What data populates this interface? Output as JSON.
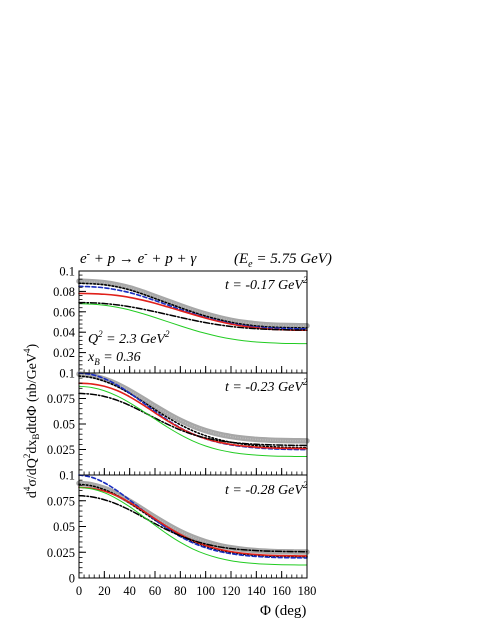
{
  "figure": {
    "reaction_parts": [
      "e",
      "-",
      " + p → e",
      "-",
      " + p + γ"
    ],
    "energy_parts": [
      "(E",
      "e",
      " = 5.75 GeV)"
    ],
    "ylabel_parts": [
      "d",
      "4",
      "σ/dQ",
      "2",
      "dx",
      "B",
      "dtdΦ (nb/GeV",
      "4",
      ")"
    ],
    "xlabel": "Φ (deg)",
    "kinematics": {
      "q2_parts": [
        "Q",
        "2",
        " = 2.3 GeV",
        "2"
      ],
      "xb_parts": [
        "x",
        "B",
        " = 0.36"
      ]
    }
  },
  "chart_data": [
    {
      "type": "line",
      "panel_label_parts": [
        "t = -0.17 GeV",
        "2"
      ],
      "xlim": [
        0,
        180
      ],
      "ylim": [
        0,
        0.1
      ],
      "xticks": [
        0,
        20,
        40,
        60,
        80,
        100,
        120,
        140,
        160,
        180
      ],
      "yticks": [
        0.02,
        0.04,
        0.06,
        0.08,
        0.1
      ],
      "ytick_labels": [
        "0.02",
        "0.04",
        "0.06",
        "0.08",
        "0.1"
      ],
      "x": [
        0,
        10,
        20,
        30,
        40,
        50,
        60,
        70,
        80,
        90,
        100,
        110,
        120,
        130,
        140,
        150,
        160,
        170,
        180
      ],
      "series": [
        {
          "style": "grey-band",
          "color": "#8a8a8a",
          "values": [
            0.09,
            0.0895,
            0.0885,
            0.0865,
            0.0835,
            0.0795,
            0.075,
            0.0705,
            0.066,
            0.0617,
            0.0578,
            0.0545,
            0.0517,
            0.0496,
            0.0482,
            0.0472,
            0.0467,
            0.0464,
            0.0463
          ]
        },
        {
          "style": "dotted",
          "color": "#000000",
          "values": [
            0.088,
            0.0875,
            0.0865,
            0.0845,
            0.0815,
            0.0775,
            0.073,
            0.0685,
            0.064,
            0.0597,
            0.0558,
            0.0525,
            0.0497,
            0.0476,
            0.0461,
            0.0451,
            0.0446,
            0.0443,
            0.0442
          ]
        },
        {
          "style": "dashed",
          "color": "#1a2dbf",
          "values": [
            0.085,
            0.0845,
            0.0835,
            0.0815,
            0.0788,
            0.0752,
            0.071,
            0.0667,
            0.0623,
            0.0582,
            0.0544,
            0.0512,
            0.0485,
            0.0465,
            0.0451,
            0.0442,
            0.0437,
            0.0434,
            0.0433
          ]
        },
        {
          "style": "solid",
          "color": "#e0201a",
          "values": [
            0.078,
            0.0778,
            0.0772,
            0.076,
            0.0741,
            0.0715,
            0.0684,
            0.0648,
            0.0611,
            0.0574,
            0.0538,
            0.0506,
            0.0479,
            0.0458,
            0.0442,
            0.0431,
            0.0424,
            0.042,
            0.0419
          ]
        },
        {
          "style": "dash-dot",
          "color": "#000000",
          "values": [
            0.069,
            0.0688,
            0.0681,
            0.0668,
            0.065,
            0.0627,
            0.0601,
            0.0573,
            0.0545,
            0.0518,
            0.0494,
            0.0473,
            0.0456,
            0.0443,
            0.0434,
            0.0428,
            0.0424,
            0.0422,
            0.0421
          ]
        },
        {
          "style": "solid-thin",
          "color": "#22cc22",
          "values": [
            0.068,
            0.0675,
            0.0664,
            0.0645,
            0.0618,
            0.0583,
            0.0544,
            0.0503,
            0.0462,
            0.0423,
            0.0388,
            0.0358,
            0.0334,
            0.0316,
            0.0304,
            0.0296,
            0.0291,
            0.0289,
            0.0288
          ]
        }
      ]
    },
    {
      "type": "line",
      "panel_label_parts": [
        "t = -0.23 GeV",
        "2"
      ],
      "xlim": [
        0,
        180
      ],
      "ylim": [
        0,
        0.1
      ],
      "xticks": [
        0,
        20,
        40,
        60,
        80,
        100,
        120,
        140,
        160,
        180
      ],
      "yticks": [
        0.025,
        0.05,
        0.075,
        0.1
      ],
      "ytick_labels": [
        "0.025",
        "0.05",
        "0.075",
        "0.1"
      ],
      "x": [
        0,
        10,
        20,
        30,
        40,
        50,
        60,
        70,
        80,
        90,
        100,
        110,
        120,
        130,
        140,
        150,
        160,
        170,
        180
      ],
      "series": [
        {
          "style": "grey-band",
          "color": "#8a8a8a",
          "values": [
            0.099,
            0.0975,
            0.094,
            0.089,
            0.0825,
            0.0752,
            0.0675,
            0.0602,
            0.0536,
            0.048,
            0.0435,
            0.0401,
            0.0377,
            0.036,
            0.0349,
            0.0342,
            0.0338,
            0.0336,
            0.0335
          ]
        },
        {
          "style": "dotted",
          "color": "#000000",
          "values": [
            0.097,
            0.0955,
            0.092,
            0.0868,
            0.08,
            0.0722,
            0.0641,
            0.0563,
            0.0493,
            0.0433,
            0.0385,
            0.0348,
            0.0321,
            0.0302,
            0.0288,
            0.0279,
            0.0273,
            0.027,
            0.0269
          ]
        },
        {
          "style": "dashed",
          "color": "#1a2dbf",
          "values": [
            0.1,
            0.0985,
            0.0945,
            0.0883,
            0.0803,
            0.0714,
            0.0624,
            0.0538,
            0.0463,
            0.0402,
            0.0355,
            0.032,
            0.0295,
            0.0278,
            0.0266,
            0.0258,
            0.0253,
            0.025,
            0.0249
          ]
        },
        {
          "style": "solid",
          "color": "#e0201a",
          "values": [
            0.09,
            0.0893,
            0.087,
            0.0828,
            0.0767,
            0.0692,
            0.061,
            0.053,
            0.0459,
            0.0401,
            0.0356,
            0.0323,
            0.03,
            0.0284,
            0.0273,
            0.0266,
            0.0262,
            0.026,
            0.0259
          ]
        },
        {
          "style": "dash-dot",
          "color": "#000000",
          "values": [
            0.08,
            0.0792,
            0.077,
            0.0733,
            0.0682,
            0.0622,
            0.0558,
            0.0497,
            0.0442,
            0.0397,
            0.0363,
            0.0338,
            0.0321,
            0.0309,
            0.0301,
            0.0296,
            0.0293,
            0.0291,
            0.029
          ]
        },
        {
          "style": "solid-thin",
          "color": "#22cc22",
          "values": [
            0.087,
            0.0858,
            0.0826,
            0.0775,
            0.0708,
            0.063,
            0.0548,
            0.0468,
            0.0395,
            0.0333,
            0.0284,
            0.0248,
            0.0223,
            0.0206,
            0.0195,
            0.0188,
            0.0184,
            0.0182,
            0.0181
          ]
        }
      ]
    },
    {
      "type": "line",
      "panel_label_parts": [
        "t = -0.28 GeV",
        "2"
      ],
      "xlim": [
        0,
        180
      ],
      "ylim": [
        0,
        0.1
      ],
      "xticks": [
        0,
        20,
        40,
        60,
        80,
        100,
        120,
        140,
        160,
        180
      ],
      "xtick_labels": [
        "0",
        "20",
        "40",
        "60",
        "80",
        "100",
        "120",
        "140",
        "160",
        "180"
      ],
      "yticks": [
        0,
        0.025,
        0.05,
        0.075,
        0.1
      ],
      "ytick_labels": [
        "0",
        "0.025",
        "0.05",
        "0.075",
        "0.1"
      ],
      "x": [
        0,
        10,
        20,
        30,
        40,
        50,
        60,
        70,
        80,
        90,
        100,
        110,
        120,
        130,
        140,
        150,
        160,
        170,
        180
      ],
      "series": [
        {
          "style": "grey-band",
          "color": "#8a8a8a",
          "values": [
            0.092,
            0.0905,
            0.087,
            0.0815,
            0.0745,
            0.0668,
            0.059,
            0.0517,
            0.0451,
            0.0396,
            0.0352,
            0.0318,
            0.0294,
            0.0277,
            0.0266,
            0.0259,
            0.0255,
            0.0253,
            0.0252
          ]
        },
        {
          "style": "dotted",
          "color": "#000000",
          "values": [
            0.091,
            0.0895,
            0.0858,
            0.0801,
            0.0728,
            0.0646,
            0.0562,
            0.0483,
            0.0413,
            0.0354,
            0.0308,
            0.0273,
            0.0248,
            0.0231,
            0.022,
            0.0213,
            0.0209,
            0.0207,
            0.0206
          ]
        },
        {
          "style": "dashed",
          "color": "#1a2dbf",
          "values": [
            0.1,
            0.0978,
            0.0925,
            0.0848,
            0.0757,
            0.066,
            0.0565,
            0.0478,
            0.0402,
            0.0341,
            0.0294,
            0.026,
            0.0236,
            0.022,
            0.0209,
            0.0202,
            0.0198,
            0.0196,
            0.0195
          ]
        },
        {
          "style": "solid",
          "color": "#e0201a",
          "values": [
            0.088,
            0.087,
            0.0843,
            0.0797,
            0.0733,
            0.0657,
            0.0575,
            0.0495,
            0.0423,
            0.0363,
            0.0316,
            0.0281,
            0.0256,
            0.0239,
            0.0228,
            0.0221,
            0.0217,
            0.0215,
            0.0214
          ]
        },
        {
          "style": "dash-dot",
          "color": "#000000",
          "values": [
            0.08,
            0.0788,
            0.076,
            0.0717,
            0.066,
            0.0595,
            0.0528,
            0.0465,
            0.041,
            0.0365,
            0.033,
            0.0304,
            0.0286,
            0.0274,
            0.0266,
            0.0261,
            0.0258,
            0.0256,
            0.0255
          ]
        },
        {
          "style": "solid-thin",
          "color": "#22cc22",
          "values": [
            0.088,
            0.0865,
            0.0828,
            0.0768,
            0.0692,
            0.0604,
            0.0512,
            0.0424,
            0.0346,
            0.0281,
            0.0231,
            0.0194,
            0.0168,
            0.0151,
            0.014,
            0.0133,
            0.0129,
            0.0127,
            0.0126
          ]
        }
      ]
    }
  ]
}
